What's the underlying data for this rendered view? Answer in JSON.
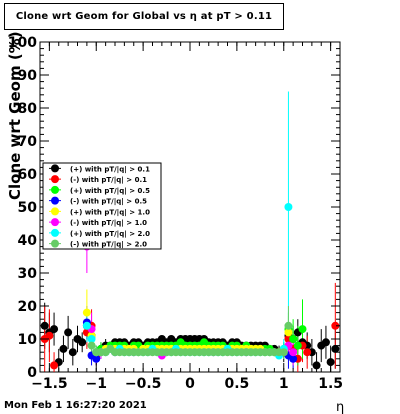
{
  "title": "Clone wrt Geom for Global vs   η at pT > 0.11",
  "timestamp": "Mon Feb  1 16:27:20 2021",
  "chart_data": {
    "type": "scatter",
    "xlabel": "η",
    "ylabel": "Clone wrt Geom (%)",
    "xlim": [
      -1.6,
      1.6
    ],
    "ylim": [
      0,
      100
    ],
    "x_ticks": [
      -1.5,
      -1,
      -0.5,
      0,
      0.5,
      1,
      1.5
    ],
    "x_tick_labels": [
      "−1.5",
      "−1",
      "−0.5",
      "0",
      "0.5",
      "1",
      "1.5"
    ],
    "y_ticks": [
      0,
      10,
      20,
      30,
      40,
      50,
      60,
      70,
      80,
      90,
      100
    ],
    "y_tick_labels": [
      "0",
      "10",
      "20",
      "30",
      "40",
      "50",
      "60",
      "70",
      "80",
      "90",
      "100"
    ],
    "grid": false,
    "legend_position": "center-left",
    "series": [
      {
        "name": "(+) with pT/|q| > 0.1",
        "color": "#000000",
        "x": [
          -1.55,
          -1.5,
          -1.45,
          -1.4,
          -1.35,
          -1.3,
          -1.25,
          -1.2,
          -1.15,
          -1.1,
          -1.05,
          -1.0,
          -0.95,
          -0.9,
          -0.85,
          -0.8,
          -0.75,
          -0.7,
          -0.65,
          -0.6,
          -0.55,
          -0.5,
          -0.45,
          -0.4,
          -0.35,
          -0.3,
          -0.25,
          -0.2,
          -0.15,
          -0.1,
          -0.05,
          0.0,
          0.05,
          0.1,
          0.15,
          0.2,
          0.25,
          0.3,
          0.35,
          0.4,
          0.45,
          0.5,
          0.55,
          0.6,
          0.65,
          0.7,
          0.75,
          0.8,
          0.85,
          0.9,
          0.95,
          1.0,
          1.05,
          1.1,
          1.15,
          1.2,
          1.25,
          1.3,
          1.35,
          1.4,
          1.45,
          1.5,
          1.55
        ],
        "y": [
          14,
          12,
          13,
          3,
          7,
          12,
          6,
          10,
          9,
          14,
          11,
          6,
          7,
          8,
          8,
          9,
          9,
          9,
          8,
          9,
          9,
          8,
          9,
          9,
          9,
          10,
          9,
          10,
          9,
          10,
          10,
          10,
          10,
          10,
          10,
          9,
          9,
          9,
          9,
          8,
          9,
          9,
          8,
          8,
          8,
          8,
          8,
          8,
          7,
          7,
          6,
          6,
          11,
          10,
          12,
          9,
          8,
          6,
          2,
          8,
          9,
          3,
          7
        ],
        "err": [
          7,
          6,
          5,
          4,
          4,
          5,
          4,
          4,
          3,
          4,
          3,
          2,
          2,
          2,
          1,
          1,
          1,
          1,
          1,
          1,
          1,
          1,
          1,
          1,
          1,
          1,
          1,
          1,
          1,
          1,
          1,
          1,
          1,
          1,
          1,
          1,
          1,
          1,
          1,
          1,
          1,
          1,
          1,
          1,
          1,
          1,
          1,
          1,
          1,
          1,
          2,
          3,
          4,
          4,
          4,
          4,
          4,
          4,
          4,
          5,
          5,
          5,
          6
        ]
      },
      {
        "name": "(-) with pT/|q| > 0.1",
        "color": "#ff0000",
        "x": [
          -1.55,
          -1.5,
          -1.45,
          -1.1,
          -1.05,
          -1.0,
          1.05,
          1.1,
          1.15,
          1.2,
          1.25,
          1.55
        ],
        "y": [
          10,
          11,
          2,
          12,
          14,
          5,
          10,
          7,
          4,
          8,
          6,
          14
        ],
        "err": [
          10,
          8,
          4,
          5,
          5,
          3,
          4,
          4,
          4,
          5,
          5,
          13
        ]
      },
      {
        "name": "(+) with pT/|q| > 0.5",
        "color": "#00ff00",
        "x": [
          -1.05,
          -1.0,
          -0.95,
          -0.9,
          -0.85,
          -0.8,
          -0.75,
          -0.7,
          -0.65,
          -0.6,
          -0.55,
          -0.5,
          -0.45,
          -0.4,
          -0.35,
          -0.3,
          -0.25,
          -0.2,
          -0.15,
          -0.1,
          -0.05,
          0.0,
          0.05,
          0.1,
          0.15,
          0.2,
          0.25,
          0.3,
          0.35,
          0.4,
          0.45,
          0.5,
          0.55,
          0.6,
          0.65,
          0.7,
          0.75,
          0.8,
          0.85,
          0.9,
          0.95,
          1.0,
          1.05,
          1.1,
          1.15,
          1.2
        ],
        "y": [
          11,
          6,
          7,
          7,
          8,
          8,
          8,
          8,
          7,
          8,
          8,
          7,
          8,
          8,
          8,
          8,
          8,
          8,
          8,
          9,
          8,
          8,
          8,
          8,
          9,
          8,
          8,
          8,
          8,
          7,
          8,
          8,
          7,
          8,
          7,
          7,
          7,
          7,
          7,
          6,
          6,
          7,
          13,
          10,
          8,
          13
        ],
        "err": [
          4,
          2,
          2,
          1,
          1,
          1,
          1,
          1,
          1,
          1,
          1,
          1,
          1,
          1,
          1,
          1,
          1,
          1,
          1,
          1,
          1,
          1,
          1,
          1,
          1,
          1,
          1,
          1,
          1,
          1,
          1,
          1,
          1,
          1,
          1,
          1,
          1,
          1,
          1,
          1,
          1,
          2,
          5,
          6,
          6,
          9
        ]
      },
      {
        "name": "(-) with pT/|q| > 0.5",
        "color": "#0000ff",
        "x": [
          -1.1,
          -1.05,
          -1.0,
          -0.95,
          -0.9,
          1.0,
          1.05,
          1.1
        ],
        "y": [
          15,
          5,
          4,
          6,
          7,
          6,
          5,
          4
        ],
        "err": [
          5,
          3,
          2,
          2,
          1,
          2,
          4,
          3
        ]
      },
      {
        "name": "(+) with pT/|q| > 1.0",
        "color": "#ffff00",
        "x": [
          -1.1,
          -1.05,
          -1.0,
          -0.95,
          -0.9,
          -0.85,
          -0.8,
          -0.75,
          -0.7,
          -0.65,
          -0.6,
          -0.55,
          -0.5,
          -0.45,
          -0.4,
          -0.35,
          -0.3,
          -0.25,
          -0.2,
          -0.15,
          -0.1,
          -0.05,
          0.0,
          0.05,
          0.1,
          0.15,
          0.2,
          0.25,
          0.3,
          0.35,
          0.4,
          0.45,
          0.5,
          0.55,
          0.6,
          0.65,
          0.7,
          0.75,
          0.8,
          0.85,
          0.9,
          0.95,
          1.0,
          1.05
        ],
        "y": [
          18,
          11,
          6,
          6,
          7,
          7,
          7,
          7,
          7,
          7,
          7,
          6,
          7,
          7,
          7,
          7,
          7,
          7,
          7,
          7,
          7,
          7,
          7,
          7,
          7,
          7,
          7,
          7,
          7,
          7,
          7,
          7,
          7,
          7,
          7,
          7,
          7,
          7,
          6,
          6,
          6,
          6,
          6,
          12
        ],
        "err": [
          7,
          4,
          2,
          1,
          1,
          1,
          1,
          1,
          1,
          1,
          1,
          1,
          1,
          1,
          1,
          1,
          1,
          1,
          1,
          1,
          1,
          1,
          1,
          1,
          1,
          1,
          1,
          1,
          1,
          1,
          1,
          1,
          1,
          1,
          1,
          1,
          1,
          1,
          1,
          1,
          1,
          1,
          2,
          5
        ]
      },
      {
        "name": "(-) with pT/|q| > 1.0",
        "color": "#ff00ff",
        "x": [
          -1.1,
          -1.05,
          -0.95,
          -0.8,
          -0.6,
          -0.3,
          0.25,
          0.6,
          1.05,
          1.1
        ],
        "y": [
          38,
          13,
          6,
          6,
          6,
          5,
          6,
          6,
          8,
          6
        ],
        "err": [
          8,
          5,
          2,
          1,
          1,
          1,
          1,
          1,
          4,
          4
        ]
      },
      {
        "name": "(+) with pT/|q| > 2.0",
        "color": "#00ffff",
        "x": [
          -1.1,
          -1.05,
          -1.0,
          -0.95,
          -0.9,
          -0.85,
          -0.8,
          -0.75,
          -0.7,
          -0.65,
          -0.6,
          -0.55,
          -0.5,
          -0.45,
          -0.4,
          -0.35,
          -0.3,
          -0.25,
          -0.2,
          -0.15,
          -0.1,
          -0.05,
          0.0,
          0.05,
          0.1,
          0.15,
          0.2,
          0.25,
          0.3,
          0.35,
          0.4,
          0.45,
          0.5,
          0.55,
          0.6,
          0.65,
          0.7,
          0.75,
          0.8,
          0.85,
          0.9,
          0.95,
          1.0,
          1.05
        ],
        "y": [
          14,
          10,
          6,
          6,
          6,
          7,
          6,
          7,
          6,
          6,
          6,
          6,
          6,
          6,
          7,
          6,
          6,
          6,
          6,
          7,
          6,
          6,
          6,
          6,
          6,
          6,
          6,
          6,
          6,
          6,
          7,
          6,
          6,
          6,
          6,
          6,
          6,
          6,
          6,
          6,
          6,
          5,
          7,
          50
        ],
        "err": [
          5,
          3,
          2,
          1,
          1,
          1,
          1,
          1,
          1,
          1,
          1,
          1,
          1,
          1,
          1,
          1,
          1,
          1,
          1,
          1,
          1,
          1,
          1,
          1,
          1,
          1,
          1,
          1,
          1,
          1,
          1,
          1,
          1,
          1,
          1,
          1,
          1,
          1,
          1,
          1,
          1,
          1,
          3,
          35
        ]
      },
      {
        "name": "(-) with pT/|q| > 2.0",
        "color": "#66cc66",
        "x": [
          -1.05,
          -1.0,
          -0.95,
          -0.9,
          -0.85,
          -0.8,
          -0.75,
          -0.7,
          -0.65,
          -0.6,
          -0.55,
          -0.5,
          -0.45,
          -0.4,
          -0.35,
          -0.3,
          -0.25,
          -0.2,
          -0.15,
          -0.1,
          -0.05,
          0.0,
          0.05,
          0.1,
          0.15,
          0.2,
          0.25,
          0.3,
          0.35,
          0.4,
          0.45,
          0.5,
          0.55,
          0.6,
          0.65,
          0.7,
          0.75,
          0.8,
          0.85,
          0.9,
          0.95,
          1.0,
          1.05
        ],
        "y": [
          8,
          6,
          6,
          6,
          7,
          6,
          6,
          6,
          6,
          6,
          6,
          6,
          6,
          6,
          6,
          6,
          6,
          6,
          6,
          6,
          6,
          6,
          6,
          6,
          6,
          6,
          6,
          6,
          6,
          6,
          6,
          6,
          6,
          6,
          6,
          6,
          6,
          6,
          6,
          6,
          6,
          6,
          14
        ],
        "err": [
          3,
          2,
          1,
          1,
          1,
          1,
          1,
          1,
          1,
          1,
          1,
          1,
          1,
          1,
          1,
          1,
          1,
          1,
          1,
          1,
          1,
          1,
          1,
          1,
          1,
          1,
          1,
          1,
          1,
          1,
          1,
          1,
          1,
          1,
          1,
          1,
          1,
          1,
          1,
          1,
          1,
          2,
          6
        ]
      }
    ]
  }
}
